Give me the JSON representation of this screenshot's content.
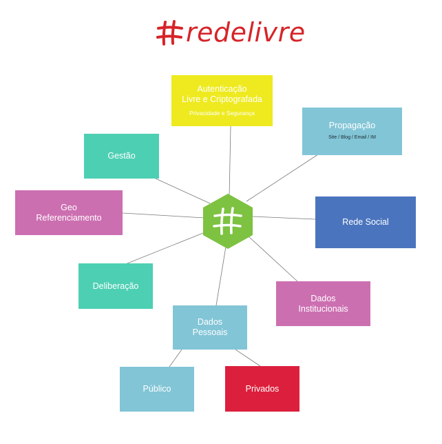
{
  "logo": {
    "text": "redelivre",
    "icon": "hash-icon",
    "color": "#d62428"
  },
  "hub": {
    "icon": "hash-icon",
    "color": "#7dc241"
  },
  "nodes": {
    "autenticacao": {
      "line1": "Autenticação",
      "line2": "Livre e Criptografada",
      "sub": "Privacidade e Segurança",
      "color": "#eeea1f"
    },
    "propagacao": {
      "line1": "Propagação",
      "sub": "Site / Blog / Email / IM",
      "color": "#82c5d6"
    },
    "gestao": {
      "line1": "Gestão",
      "color": "#4dcfb3"
    },
    "geo": {
      "line1": "Geo",
      "line2": "Referenciamento",
      "color": "#cc6fb1"
    },
    "rede_social": {
      "line1": "Rede Social",
      "color": "#4a74be"
    },
    "deliberacao": {
      "line1": "Deliberação",
      "color": "#4dcfb3"
    },
    "dados_institucionais": {
      "line1": "Dados",
      "line2": "Institucionais",
      "color": "#cc6fb1"
    },
    "dados_pessoais": {
      "line1": "Dados",
      "line2": "Pessoais",
      "color": "#82c5d6"
    },
    "publico": {
      "line1": "Público",
      "color": "#82c5d6"
    },
    "privados": {
      "line1": "Privados",
      "color": "#dc1f3c"
    }
  },
  "line_color": "#777777"
}
